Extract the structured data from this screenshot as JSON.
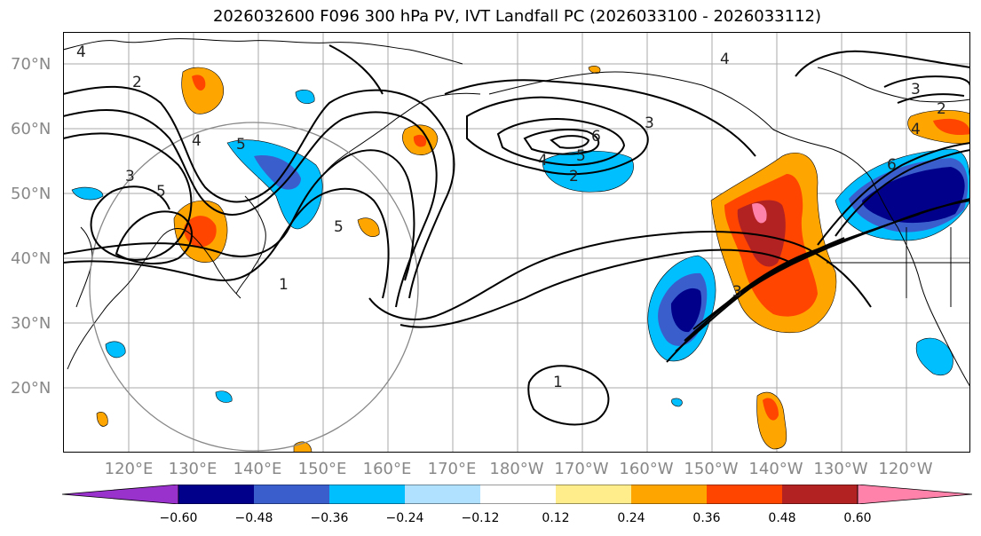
{
  "title": "2026032600 F096 300 hPa PV, IVT Landfall PC (2026033100 - 2026033112)",
  "latitude_labels": [
    "70°N",
    "60°N",
    "50°N",
    "40°N",
    "30°N",
    "20°N"
  ],
  "longitude_labels": [
    "120°E",
    "130°E",
    "140°E",
    "150°E",
    "160°E",
    "170°E",
    "180°W",
    "170°W",
    "160°W",
    "150°W",
    "140°W",
    "130°W",
    "120°W"
  ],
  "colorbar": {
    "ticks": [
      "−0.60",
      "−0.48",
      "−0.36",
      "−0.24",
      "−0.12",
      "0.12",
      "0.24",
      "0.36",
      "0.48",
      "0.60"
    ],
    "colors": [
      "#9932cc",
      "#00008b",
      "#3a5fcd",
      "#00bfff",
      "#b0e2ff",
      "#ffffff",
      "#ffec8b",
      "#ffa500",
      "#ff4500",
      "#b22222",
      "#ff82ab"
    ]
  },
  "contour_labels": [
    "4",
    "2",
    "4",
    "5",
    "3",
    "5",
    "5",
    "1",
    "6",
    "4",
    "5",
    "3",
    "2",
    "4",
    "6",
    "3",
    "1",
    "2",
    "3",
    "4"
  ]
}
